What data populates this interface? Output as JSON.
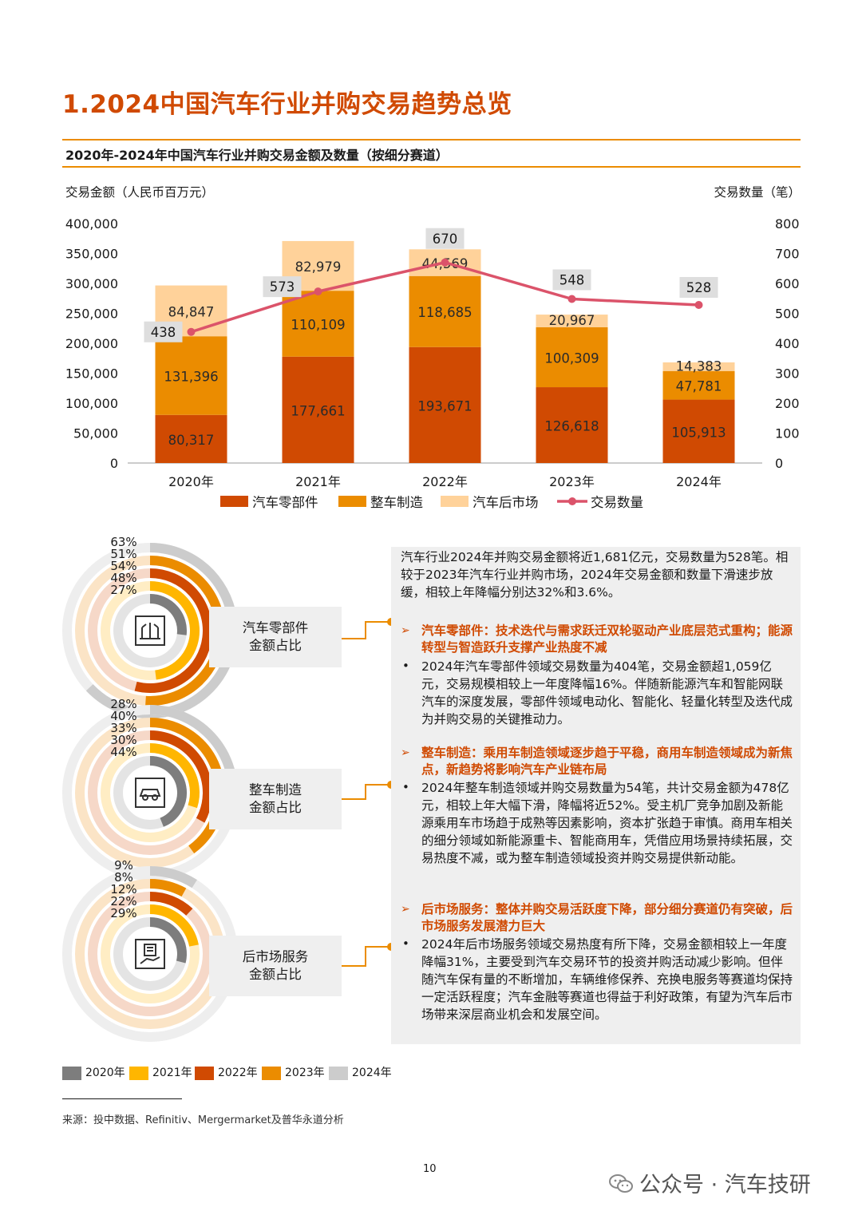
{
  "page": {
    "title": "1.2024中国汽车行业并购交易趋势总览",
    "subtitle": "2020年-2024年中国汽车行业并购交易金额及数量（按细分赛道）",
    "page_number": "10",
    "source": "来源：投中数据、Refinitiv、Mergermarket及普华永道分析",
    "watermark": "公众号 · 汽车技研"
  },
  "colors": {
    "accent": "#d04a02",
    "parts": "#d04a02",
    "vehicle": "#eb8c00",
    "aftermarket": "#ffd29a",
    "count_line": "#db536a",
    "y2020": "#7d7d7d",
    "y2021": "#ffb600",
    "y2022": "#d04a02",
    "y2023": "#eb8c00",
    "y2024": "#cccccc"
  },
  "chart_data": [
    {
      "type": "bar",
      "stacked": true,
      "title": "2020年-2024年中国汽车行业并购交易金额及数量（按细分赛道）",
      "ylabel": "交易金额（人民币百万元）",
      "y2label": "交易数量（笔）",
      "ylim": [
        0,
        400000
      ],
      "y2lim": [
        0,
        800
      ],
      "yticks": [
        "400,000",
        "350,000",
        "300,000",
        "250,000",
        "200,000",
        "150,000",
        "100,000",
        "50,000",
        "0"
      ],
      "y2ticks": [
        "800",
        "700",
        "600",
        "500",
        "400",
        "300",
        "200",
        "100",
        "0"
      ],
      "categories": [
        "2020年",
        "2021年",
        "2022年",
        "2023年",
        "2024年"
      ],
      "series": [
        {
          "name": "汽车零部件",
          "values": [
            80317,
            177661,
            193671,
            126618,
            105913
          ],
          "labels": [
            "80,317",
            "177,661",
            "193,671",
            "126,618",
            "105,913"
          ]
        },
        {
          "name": "整车制造",
          "values": [
            131396,
            110109,
            118685,
            100309,
            47781
          ],
          "labels": [
            "131,396",
            "110,109",
            "118,685",
            "100,309",
            "47,781"
          ]
        },
        {
          "name": "汽车后市场",
          "values": [
            84847,
            82979,
            44569,
            20967,
            14383
          ],
          "labels": [
            "84,847",
            "82,979",
            "44,569",
            "20,967",
            "14,383"
          ]
        }
      ],
      "line": {
        "name": "交易数量",
        "values": [
          438,
          573,
          670,
          548,
          528
        ]
      },
      "legend_position": "bottom"
    },
    {
      "type": "donut",
      "label": "汽车零部件金额占比",
      "years": [
        "2020年",
        "2021年",
        "2022年",
        "2023年",
        "2024年"
      ],
      "percentages": [
        27,
        48,
        54,
        51,
        63
      ]
    },
    {
      "type": "donut",
      "label": "整车制造金额占比",
      "years": [
        "2020年",
        "2021年",
        "2022年",
        "2023年",
        "2024年"
      ],
      "percentages": [
        44,
        30,
        33,
        40,
        28
      ]
    },
    {
      "type": "donut",
      "label": "后市场服务金额占比",
      "years": [
        "2020年",
        "2021年",
        "2022年",
        "2023年",
        "2024年"
      ],
      "percentages": [
        29,
        22,
        12,
        8,
        9
      ]
    }
  ],
  "donuts": [
    {
      "label_line1": "汽车零部件",
      "label_line2": "金额占比",
      "icon": "parts-icon"
    },
    {
      "label_line1": "整车制造",
      "label_line2": "金额占比",
      "icon": "car-icon"
    },
    {
      "label_line1": "后市场服务",
      "label_line2": "金额占比",
      "icon": "service-icon"
    }
  ],
  "panel": {
    "intro": "汽车行业2024年并购交易金额将近1,681亿元，交易数量为528笔。相较于2023年汽车行业并购市场，2024年交易金额和数量下滑速步放缓，相较上年降幅分别达32%和3.6%。",
    "sections": [
      {
        "title": "汽车零部件：技术迭代与需求跃迁双轮驱动产业底层范式重构；能源转型与智造跃升支撑产业热度不减",
        "body": "2024年汽车零部件领域交易数量为404笔，交易金额超1,059亿元，交易规模相较上一年度降幅16%。伴随新能源汽车和智能网联汽车的深度发展，零部件领域电动化、智能化、轻量化转型及迭代成为并购交易的关键推动力。"
      },
      {
        "title": "整车制造：乘用车制造领域逐步趋于平稳，商用车制造领域成为新焦点，新趋势将影响汽车产业链布局",
        "body": "2024年整车制造领域并购交易数量为54笔，共计交易金额为478亿元，相较上年大幅下滑，降幅将近52%。受主机厂竞争加剧及新能源乘用车市场趋于成熟等因素影响，资本扩张趋于审慎。商用车相关的细分领域如新能源重卡、智能商用车，凭借应用场景持续拓展，交易热度不减，或为整车制造领域投资并购交易提供新动能。"
      },
      {
        "title": "后市场服务：整体并购交易活跃度下降，部分细分赛道仍有突破，后市场服务发展潜力巨大",
        "body": "2024年后市场服务领域交易热度有所下降，交易金额相较上一年度降幅31%，主要受到汽车交易环节的投资并购活动减少影响。但伴随汽车保有量的不断增加，车辆维修保养、充换电服务等赛道均保持一定活跃程度；汽车金融等赛道也得益于利好政策，有望为汽车后市场带来深层商业机会和发展空间。"
      }
    ]
  },
  "year_legend": [
    "2020年",
    "2021年",
    "2022年",
    "2023年",
    "2024年"
  ]
}
